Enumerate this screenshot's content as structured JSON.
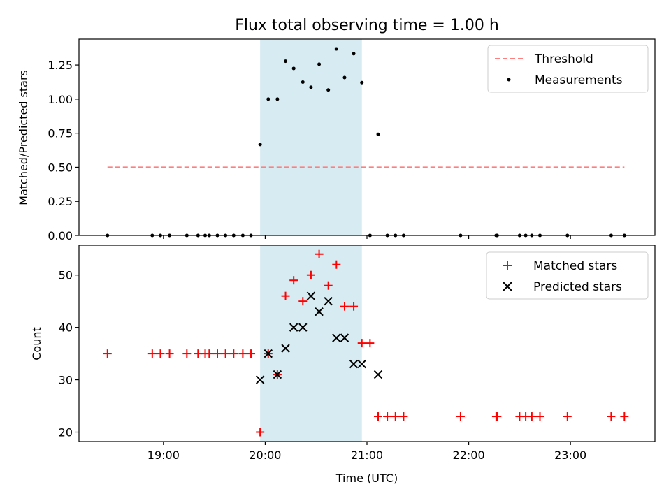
{
  "colors": {
    "threshold": "#ff7f7f",
    "matched": "#ff0000",
    "predicted": "#000000",
    "measurement": "#000000",
    "span": "#add8e6"
  },
  "chart_data": [
    {
      "type": "scatter",
      "title": "Flux total observing time = 1.00 h",
      "ylabel": "Matched/Predicted stars",
      "xlabel": "",
      "xlim": [
        18.17,
        23.83
      ],
      "ylim": [
        0,
        1.44
      ],
      "yticks": [
        0,
        0.25,
        0.5,
        0.75,
        1.0,
        1.25
      ],
      "ytick_labels": [
        "0.00",
        "0.25",
        "0.50",
        "0.75",
        "1.00",
        "1.25"
      ],
      "xticks": [
        19,
        20,
        21,
        22,
        23
      ],
      "span": [
        19.95,
        20.95
      ],
      "legend_position": "top-right",
      "threshold": {
        "name": "Threshold",
        "x": [
          18.45,
          23.53
        ],
        "y": 0.5
      },
      "series": [
        {
          "name": "Measurements",
          "x": [
            18.45,
            18.89,
            18.97,
            19.06,
            19.23,
            19.34,
            19.41,
            19.45,
            19.53,
            19.61,
            19.69,
            19.78,
            19.86,
            19.95,
            20.03,
            20.12,
            20.2,
            20.28,
            20.37,
            20.45,
            20.53,
            20.62,
            20.7,
            20.78,
            20.87,
            20.95,
            21.03,
            21.11,
            21.2,
            21.28,
            21.36,
            21.92,
            22.27,
            22.28,
            22.5,
            22.56,
            22.62,
            22.7,
            22.97,
            23.4,
            23.53
          ],
          "y": [
            0,
            0,
            0,
            0,
            0,
            0,
            0,
            0,
            0,
            0,
            0,
            0,
            0,
            0.667,
            1.0,
            1.0,
            1.278,
            1.225,
            1.125,
            1.087,
            1.256,
            1.067,
            1.368,
            1.158,
            1.333,
            1.121,
            0,
            0.742,
            0,
            0,
            0,
            0,
            0,
            0,
            0,
            0,
            0,
            0,
            0,
            0,
            0
          ]
        }
      ]
    },
    {
      "type": "scatter",
      "title": "",
      "ylabel": "Count",
      "xlabel": "Time (UTC)",
      "xlim": [
        18.17,
        23.83
      ],
      "ylim": [
        18.2,
        55.7
      ],
      "yticks": [
        20,
        30,
        40,
        50
      ],
      "ytick_labels": [
        "20",
        "30",
        "40",
        "50"
      ],
      "xticks": [
        19,
        20,
        21,
        22,
        23
      ],
      "xtick_labels": [
        "19:00",
        "20:00",
        "21:00",
        "22:00",
        "23:00"
      ],
      "span": [
        19.95,
        20.95
      ],
      "legend_position": "top-right",
      "series": [
        {
          "name": "Matched stars",
          "marker": "plus",
          "x": [
            18.45,
            18.89,
            18.97,
            19.06,
            19.23,
            19.34,
            19.41,
            19.45,
            19.53,
            19.61,
            19.69,
            19.78,
            19.86,
            19.95,
            20.03,
            20.12,
            20.2,
            20.28,
            20.37,
            20.45,
            20.53,
            20.62,
            20.7,
            20.78,
            20.87,
            20.95,
            21.03,
            21.11,
            21.2,
            21.28,
            21.36,
            21.92,
            22.27,
            22.28,
            22.5,
            22.56,
            22.62,
            22.7,
            22.97,
            23.4,
            23.53
          ],
          "y": [
            35,
            35,
            35,
            35,
            35,
            35,
            35,
            35,
            35,
            35,
            35,
            35,
            35,
            20,
            35,
            31,
            46,
            49,
            45,
            50,
            54,
            48,
            52,
            44,
            44,
            37,
            37,
            23,
            23,
            23,
            23,
            23,
            23,
            23,
            23,
            23,
            23,
            23,
            23,
            23,
            23
          ]
        },
        {
          "name": "Predicted stars",
          "marker": "x",
          "x": [
            19.95,
            20.03,
            20.12,
            20.2,
            20.28,
            20.37,
            20.45,
            20.53,
            20.62,
            20.7,
            20.78,
            20.87,
            20.95,
            21.11
          ],
          "y": [
            30,
            35,
            31,
            36,
            40,
            40,
            46,
            43,
            45,
            38,
            38,
            33,
            33,
            31
          ]
        }
      ]
    }
  ]
}
